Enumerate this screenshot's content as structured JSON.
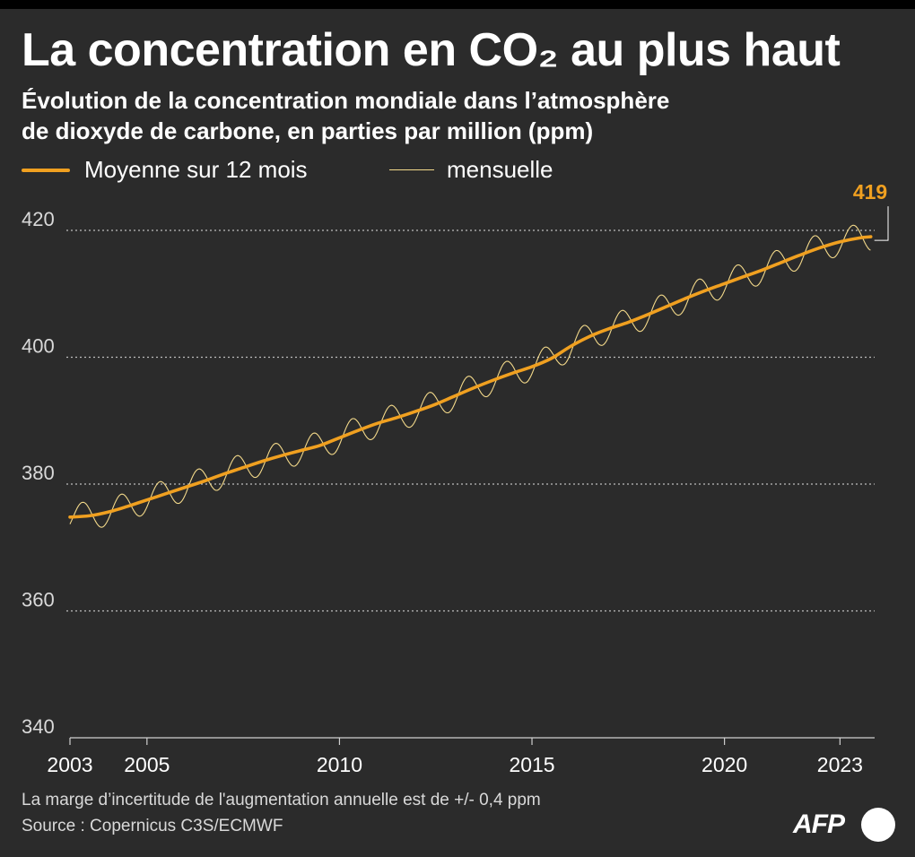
{
  "header": {
    "title": "La concentration en CO₂ au plus haut",
    "subtitle_line1": "Évolution de la concentration mondiale dans l’atmosphère",
    "subtitle_line2": "de dioxyde de carbone, en parties par million (ppm)"
  },
  "legend": {
    "annual": "Moyenne sur 12 mois",
    "monthly": "mensuelle"
  },
  "footer": {
    "note": "La marge d’incertitude de l'augmentation annuelle est de +/- 0,4 ppm",
    "source": "Source : Copernicus C3S/ECMWF"
  },
  "logo": {
    "text": "AFP"
  },
  "colors": {
    "background": "#2b2b2b",
    "annual_line": "#f0a020",
    "monthly_line": "#f3d98a",
    "grid": "#bdbdbd",
    "annotation": "#f0a020"
  },
  "chart_data": {
    "type": "line",
    "title": "La concentration en CO₂ au plus haut",
    "ylabel": "",
    "xlabel": "",
    "xlim": [
      2003.0,
      2023.9
    ],
    "ylim": [
      340,
      420
    ],
    "yticks": [
      340,
      360,
      380,
      400,
      420
    ],
    "xticks": [
      2003,
      2005,
      2010,
      2015,
      2020,
      2023
    ],
    "grid": true,
    "legend_position": "top-left",
    "annotation": {
      "label": "419",
      "x": 2023.8,
      "y": 419
    },
    "series": [
      {
        "name": "Moyenne sur 12 mois",
        "style": "thick",
        "x": [
          2003.0,
          2003.5,
          2004.0,
          2004.5,
          2005.0,
          2005.5,
          2006.0,
          2006.5,
          2007.0,
          2007.5,
          2008.0,
          2008.5,
          2009.0,
          2009.5,
          2010.0,
          2010.5,
          2011.0,
          2011.5,
          2012.0,
          2012.5,
          2013.0,
          2013.5,
          2014.0,
          2014.5,
          2015.0,
          2015.5,
          2016.0,
          2016.5,
          2017.0,
          2017.5,
          2018.0,
          2018.5,
          2019.0,
          2019.5,
          2020.0,
          2020.5,
          2021.0,
          2021.5,
          2022.0,
          2022.5,
          2023.0,
          2023.5,
          2023.8
        ],
        "values": [
          374.8,
          375.0,
          375.6,
          376.5,
          377.5,
          378.5,
          379.5,
          380.5,
          381.6,
          382.6,
          383.6,
          384.5,
          385.3,
          386.1,
          387.3,
          388.5,
          389.6,
          390.5,
          391.5,
          392.6,
          393.9,
          395.2,
          396.4,
          397.5,
          398.5,
          399.8,
          401.7,
          403.3,
          404.5,
          405.5,
          406.7,
          408.0,
          409.3,
          410.5,
          411.6,
          412.7,
          413.8,
          415.0,
          416.2,
          417.3,
          418.2,
          418.8,
          419.0
        ]
      },
      {
        "name": "mensuelle",
        "style": "thin",
        "seasonal_amplitude_ppm": 2.2,
        "seasonal_peak_month": 5,
        "seasonal_trough_month": 9,
        "x_start": 2003.0,
        "x_end": 2023.8
      }
    ]
  }
}
